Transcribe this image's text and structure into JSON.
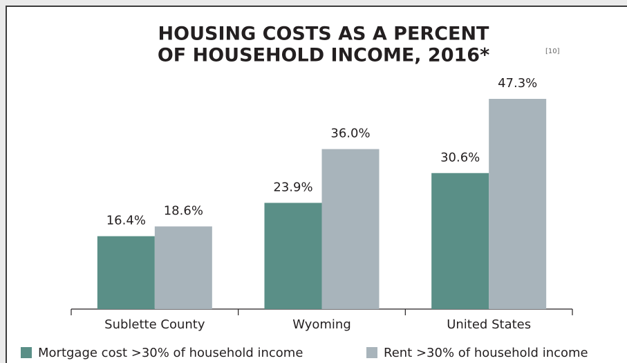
{
  "chart_data": {
    "type": "bar",
    "title": [
      "HOUSING COSTS AS A PERCENT",
      "OF HOUSEHOLD INCOME, 2016*"
    ],
    "title_note": "[10]",
    "categories": [
      "Sublette County",
      "Wyoming",
      "United States"
    ],
    "series": [
      {
        "name": "Mortgage cost >30% of household income",
        "color": "#5a8f87",
        "values": [
          16.4,
          23.9,
          30.6
        ],
        "value_labels": [
          "16.4%",
          "23.9%",
          "30.6%"
        ]
      },
      {
        "name": "Rent >30% of household income",
        "color": "#a8b4bb",
        "values": [
          18.6,
          36.0,
          47.3
        ],
        "value_labels": [
          "18.6%",
          "36.0%",
          "47.3%"
        ]
      }
    ],
    "legend": "bottom"
  }
}
